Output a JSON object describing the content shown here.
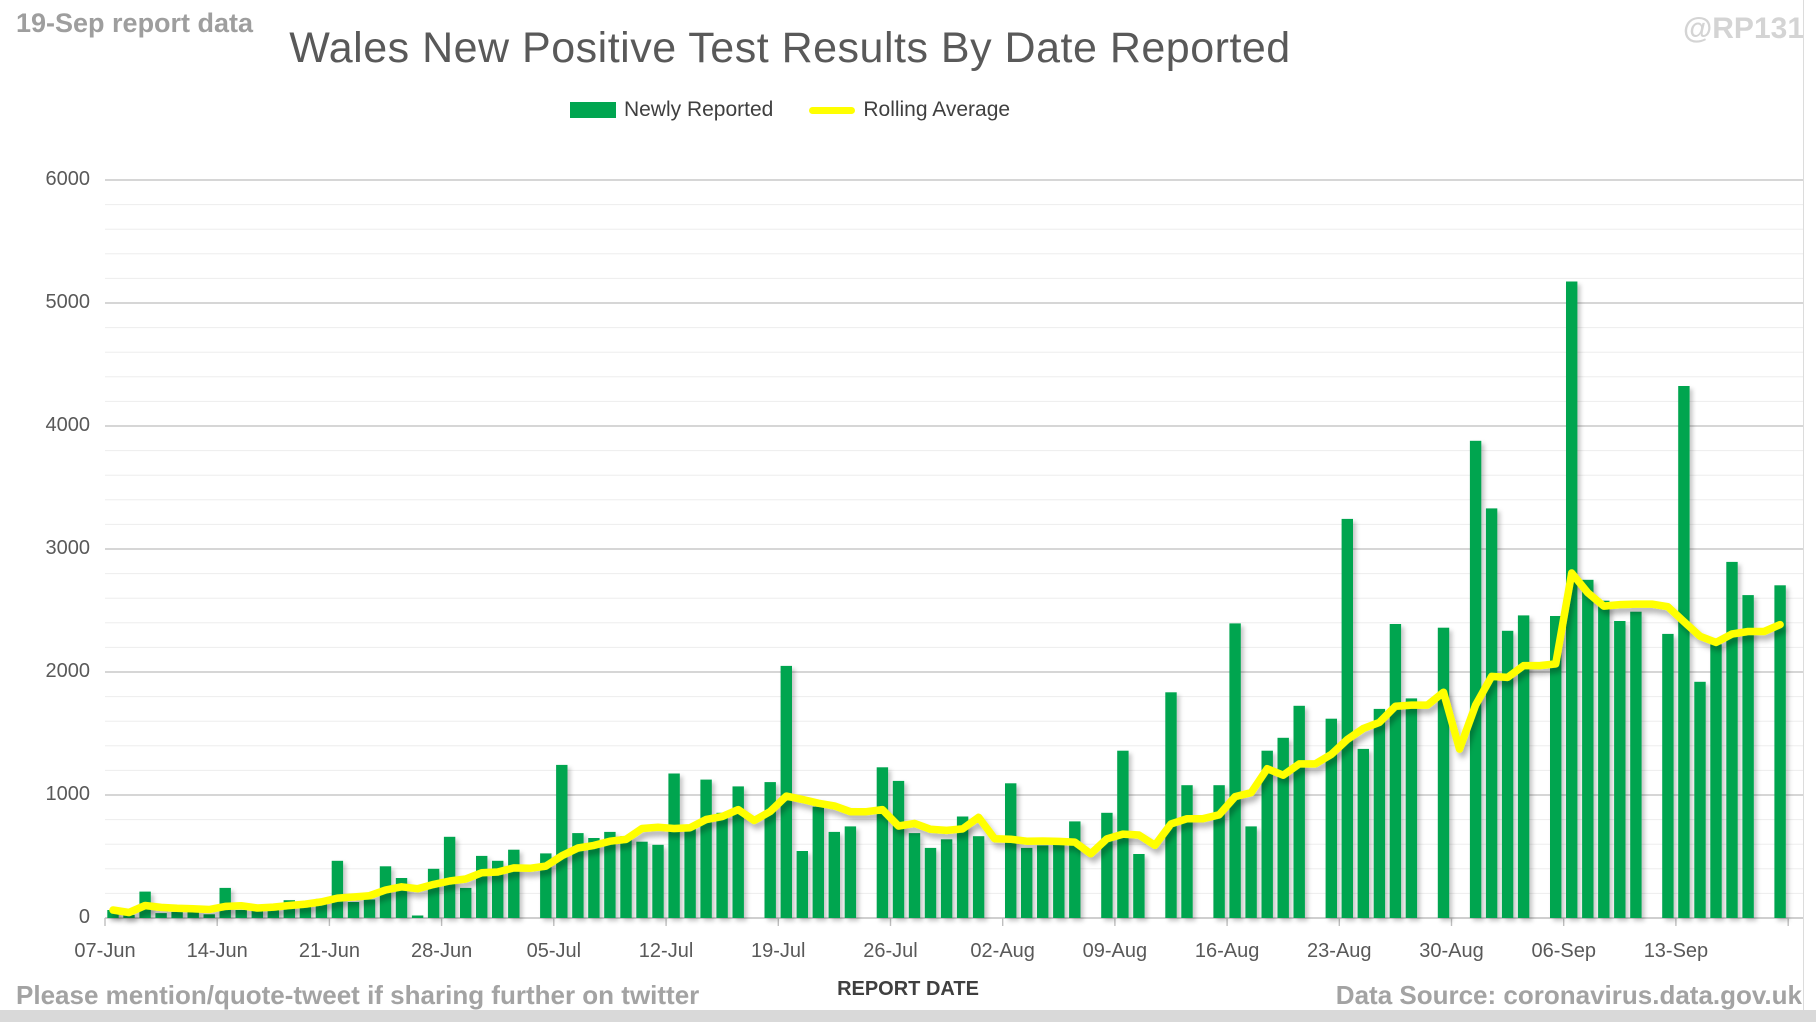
{
  "header": {
    "report_note": "19-Sep report data",
    "title": "Wales New Positive Test Results By Date Reported",
    "handle": "@RP131"
  },
  "legend": {
    "newly_reported_label": "Newly Reported",
    "rolling_average_label": "Rolling Average"
  },
  "footer": {
    "share_note": "Please mention/quote-tweet if sharing further on twitter",
    "data_source": "Data Source: coronavirus.data.gov.uk",
    "xlabel": "REPORT DATE"
  },
  "colors": {
    "bar_green": "#00A550",
    "line_yellow": "#FFFF00",
    "title_text": "#595959",
    "muted_text": "#A3A3A3",
    "handle_text": "#D4D4D4",
    "axis_text": "#595959",
    "major_gridline": "#C8C8C8",
    "minor_gridline": "#EDEDED",
    "axis_line": "#BFBFBF"
  },
  "chart_data": {
    "type": "bar",
    "title": "Wales New Positive Test Results By Date Reported",
    "xlabel": "REPORT DATE",
    "ylabel": "",
    "ylim": [
      0,
      6000
    ],
    "y_tick_step": 1000,
    "y_minor_gridline_step": 200,
    "grid": "horizontal",
    "legend_position": "top-center",
    "x_start_date": "07-Jun",
    "x_end_date": "19-Sep",
    "days_per_tick": 7,
    "x_tick_labels": [
      "07-Jun",
      "14-Jun",
      "21-Jun",
      "28-Jun",
      "05-Jul",
      "12-Jul",
      "19-Jul",
      "26-Jul",
      "02-Aug",
      "09-Aug",
      "16-Aug",
      "23-Aug",
      "30-Aug",
      "06-Sep",
      "13-Sep"
    ],
    "series": [
      {
        "name": "Newly Reported",
        "type": "bar",
        "color": "#00A550",
        "values": [
          65,
          25,
          215,
          40,
          50,
          55,
          30,
          245,
          65,
          85,
          90,
          145,
          130,
          155,
          465,
          130,
          150,
          420,
          325,
          20,
          400,
          660,
          245,
          505,
          465,
          555,
          0,
          525,
          1245,
          690,
          650,
          700,
          665,
          620,
          595,
          1175,
          730,
          1125,
          855,
          1070,
          0,
          1105,
          2050,
          545,
          905,
          700,
          745,
          0,
          1225,
          1115,
          690,
          570,
          640,
          825,
          665,
          0,
          1095,
          570,
          590,
          615,
          785,
          0,
          855,
          1360,
          520,
          0,
          1835,
          1080,
          0,
          1080,
          2395,
          745,
          1360,
          1465,
          1725,
          0,
          1620,
          3245,
          1375,
          1700,
          2390,
          1785,
          0,
          2360,
          0,
          3880,
          3330,
          2335,
          2460,
          0,
          2455,
          5175,
          2750,
          2580,
          2415,
          2490,
          0,
          2310,
          4325,
          1920,
          2225,
          2895,
          2625,
          0,
          2705
        ]
      },
      {
        "name": "Rolling Average",
        "type": "line",
        "color": "#FFFF00",
        "values": [
          65,
          45,
          102,
          86,
          79,
          75,
          69,
          94,
          100,
          81,
          89,
          102,
          113,
          131,
          162,
          171,
          181,
          228,
          254,
          238,
          273,
          301,
          317,
          368,
          374,
          407,
          404,
          422,
          506,
          569,
          590,
          624,
          639,
          728,
          738,
          728,
          734,
          801,
          824,
          881,
          793,
          866,
          991,
          964,
          933,
          911,
          864,
          864,
          881,
          748,
          769,
          721,
          712,
          724,
          819,
          644,
          641,
          624,
          626,
          623,
          617,
          522,
          644,
          682,
          675,
          591,
          765,
          807,
          807,
          839,
          987,
          1019,
          1214,
          1161,
          1253,
          1253,
          1330,
          1451,
          1541,
          1590,
          1722,
          1731,
          1731,
          1836,
          1373,
          1731,
          1964,
          1956,
          2052,
          2052,
          2066,
          2805,
          2644,
          2536,
          2548,
          2552,
          2552,
          2531,
          2410,
          2291,
          2241,
          2309,
          2329,
          2329,
          2385
        ]
      }
    ]
  }
}
